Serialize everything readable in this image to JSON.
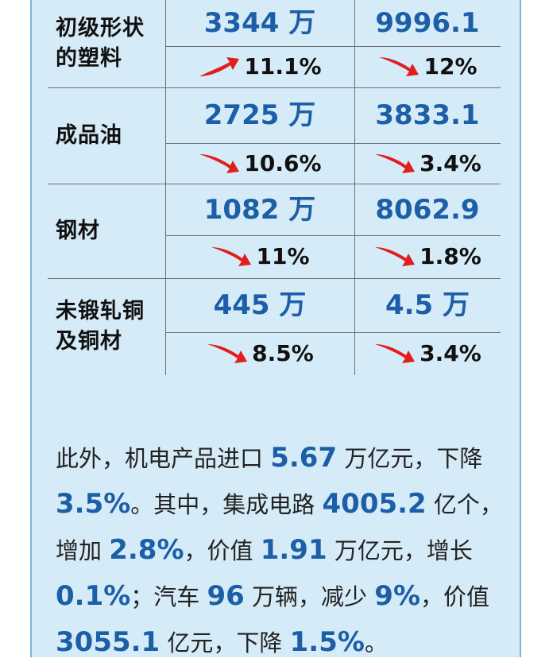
{
  "rows": [
    {
      "label_lines": [
        "初级形状",
        "的塑料"
      ],
      "qty": "3344 万",
      "qty_change": {
        "dir": "up",
        "pct": "11.1%"
      },
      "value": "9996.1",
      "value_change": {
        "dir": "down",
        "pct": "12%"
      }
    },
    {
      "label_lines": [
        "成品油"
      ],
      "qty": "2725 万",
      "qty_change": {
        "dir": "down",
        "pct": "10.6%"
      },
      "value": "3833.1",
      "value_change": {
        "dir": "down",
        "pct": "3.4%"
      }
    },
    {
      "label_lines": [
        "钢材"
      ],
      "qty": "1082 万",
      "qty_change": {
        "dir": "down",
        "pct": "11%"
      },
      "value": "8062.9",
      "value_change": {
        "dir": "down",
        "pct": "1.8%"
      }
    },
    {
      "label_lines": [
        "未锻轧铜",
        "及铜材"
      ],
      "qty": "445 万",
      "qty_change": {
        "dir": "down",
        "pct": "8.5%"
      },
      "value": "4.5 万",
      "value_change": {
        "dir": "down",
        "pct": "3.4%"
      }
    }
  ],
  "paragraph": [
    {
      "t": "此外，机电产品进口 "
    },
    {
      "t": "5.67",
      "hl": true
    },
    {
      "t": " 万亿元，下降 "
    },
    {
      "t": "3.5%",
      "hl": true
    },
    {
      "t": "。其中，集成电路 "
    },
    {
      "t": "4005.2",
      "hl": true
    },
    {
      "t": " 亿个，增加 "
    },
    {
      "t": "2.8%",
      "hl": true
    },
    {
      "t": "，价值 "
    },
    {
      "t": "1.91",
      "hl": true
    },
    {
      "t": " 万亿元，增长 "
    },
    {
      "t": "0.1%",
      "hl": true
    },
    {
      "t": "；汽车 "
    },
    {
      "t": "96",
      "hl": true
    },
    {
      "t": " 万辆，减少 "
    },
    {
      "t": "9%",
      "hl": true
    },
    {
      "t": "，价值 "
    },
    {
      "t": "3055.1",
      "hl": true
    },
    {
      "t": " 亿元，下降 "
    },
    {
      "t": "1.5%",
      "hl": true
    },
    {
      "t": "。"
    }
  ],
  "colors": {
    "panel": "#d6ebf8",
    "value_text": "#1c5fa7",
    "arrow": "#e11d1d"
  }
}
